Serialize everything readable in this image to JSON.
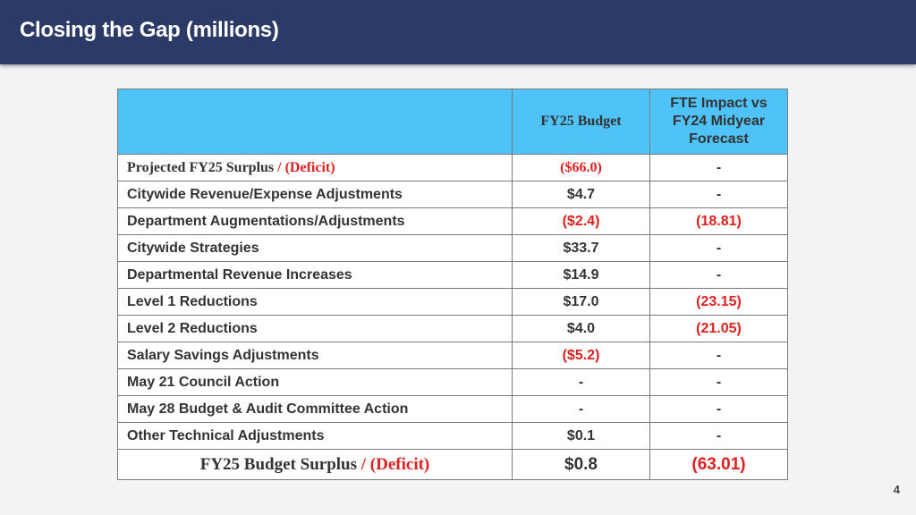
{
  "header": {
    "title": "Closing the Gap (millions)"
  },
  "table": {
    "columns": [
      "",
      "FY25 Budget",
      "FTE Impact vs FY24 Midyear Forecast"
    ],
    "first_row": {
      "label_main": "Projected FY25 Surplus",
      "label_sep": " / ",
      "label_deficit": "(Deficit)",
      "budget": "($66.0)",
      "fte": "-"
    },
    "rows": [
      {
        "label": "Citywide Revenue/Expense Adjustments",
        "budget": "$4.7",
        "fte": "-"
      },
      {
        "label": "Department Augmentations/Adjustments",
        "budget": "($2.4)",
        "fte": "(18.81)"
      },
      {
        "label": "Citywide Strategies",
        "budget": "$33.7",
        "fte": "-"
      },
      {
        "label": "Departmental Revenue Increases",
        "budget": "$14.9",
        "fte": "-"
      },
      {
        "label": "Level 1 Reductions",
        "budget": "$17.0",
        "fte": "(23.15)"
      },
      {
        "label": "Level 2 Reductions",
        "budget": "$4.0",
        "fte": "(21.05)"
      },
      {
        "label": "Salary Savings Adjustments",
        "budget": "($5.2)",
        "fte": "-"
      },
      {
        "label": "May 21 Council Action",
        "budget": "-",
        "fte": "-"
      },
      {
        "label": "May 28 Budget & Audit Committee Action",
        "budget": "-",
        "fte": "-"
      },
      {
        "label": "Other Technical Adjustments",
        "budget": "$0.1",
        "fte": "-"
      }
    ],
    "total_row": {
      "label_main": "FY25 Budget Surplus",
      "label_sep": " / ",
      "label_deficit": "(Deficit)",
      "budget": "$0.8",
      "fte": "(63.01)"
    }
  },
  "page_number": "4",
  "colors": {
    "header_bg": "#2b3a67",
    "table_header_bg": "#4fc3f7",
    "negative": "#e02020"
  }
}
